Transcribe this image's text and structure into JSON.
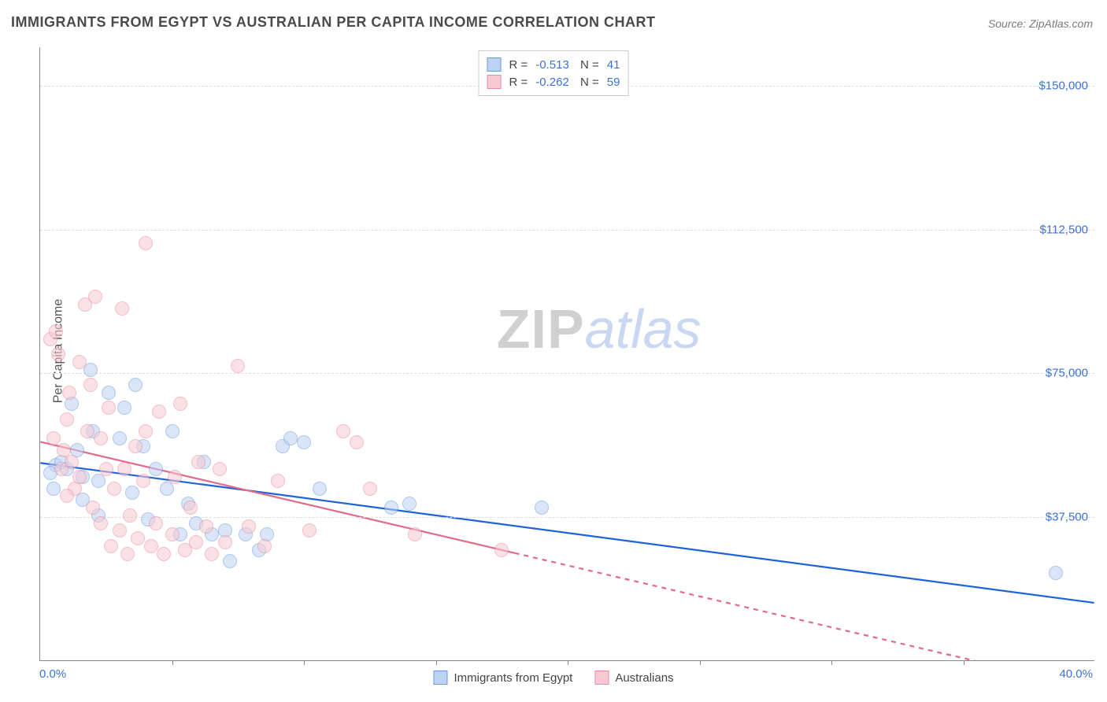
{
  "title": "IMMIGRANTS FROM EGYPT VS AUSTRALIAN PER CAPITA INCOME CORRELATION CHART",
  "source_label": "Source: ZipAtlas.com",
  "ylabel": "Per Capita Income",
  "watermark": {
    "part1": "ZIP",
    "part2": "atlas"
  },
  "chart": {
    "type": "scatter",
    "xlim": [
      0,
      40
    ],
    "ylim": [
      0,
      160000
    ],
    "x_tick_left": "0.0%",
    "x_tick_right": "40.0%",
    "x_minor_ticks": [
      5,
      10,
      15,
      20,
      25,
      30,
      35
    ],
    "y_ticks": [
      {
        "v": 37500,
        "label": "$37,500"
      },
      {
        "v": 75000,
        "label": "$75,000"
      },
      {
        "v": 112500,
        "label": "$112,500"
      },
      {
        "v": 150000,
        "label": "$150,000"
      }
    ],
    "background_color": "#ffffff",
    "grid_color": "#dddddd",
    "axis_color": "#888888",
    "value_color": "#3b72d4",
    "point_radius": 9,
    "point_opacity": 0.55,
    "line_width": 2.2,
    "series": [
      {
        "key": "egypt",
        "label": "Immigrants from Egypt",
        "color_fill": "#bcd3f2",
        "color_stroke": "#6a9ae0",
        "line_color": "#1e63d8",
        "R": "-0.513",
        "N": "41",
        "trend": {
          "start": {
            "x": 0,
            "y": 51500
          },
          "end": {
            "x": 40,
            "y": 15000
          },
          "extrapolate_from_x": 40
        },
        "points": [
          {
            "x": 0.6,
            "y": 51000
          },
          {
            "x": 0.8,
            "y": 52000
          },
          {
            "x": 1.0,
            "y": 50000
          },
          {
            "x": 1.2,
            "y": 67000
          },
          {
            "x": 1.4,
            "y": 55000
          },
          {
            "x": 1.6,
            "y": 48000
          },
          {
            "x": 1.6,
            "y": 42000
          },
          {
            "x": 1.9,
            "y": 76000
          },
          {
            "x": 2.0,
            "y": 60000
          },
          {
            "x": 2.2,
            "y": 47000
          },
          {
            "x": 2.2,
            "y": 38000
          },
          {
            "x": 2.6,
            "y": 70000
          },
          {
            "x": 3.0,
            "y": 58000
          },
          {
            "x": 3.2,
            "y": 66000
          },
          {
            "x": 3.5,
            "y": 44000
          },
          {
            "x": 3.6,
            "y": 72000
          },
          {
            "x": 3.9,
            "y": 56000
          },
          {
            "x": 4.1,
            "y": 37000
          },
          {
            "x": 4.4,
            "y": 50000
          },
          {
            "x": 4.8,
            "y": 45000
          },
          {
            "x": 5.0,
            "y": 60000
          },
          {
            "x": 5.3,
            "y": 33000
          },
          {
            "x": 5.6,
            "y": 41000
          },
          {
            "x": 5.9,
            "y": 36000
          },
          {
            "x": 6.2,
            "y": 52000
          },
          {
            "x": 6.5,
            "y": 33000
          },
          {
            "x": 7.0,
            "y": 34000
          },
          {
            "x": 7.2,
            "y": 26000
          },
          {
            "x": 7.8,
            "y": 33000
          },
          {
            "x": 8.3,
            "y": 29000
          },
          {
            "x": 8.6,
            "y": 33000
          },
          {
            "x": 9.2,
            "y": 56000
          },
          {
            "x": 9.5,
            "y": 58000
          },
          {
            "x": 10.0,
            "y": 57000
          },
          {
            "x": 10.6,
            "y": 45000
          },
          {
            "x": 13.3,
            "y": 40000
          },
          {
            "x": 14.0,
            "y": 41000
          },
          {
            "x": 19.0,
            "y": 40000
          },
          {
            "x": 38.5,
            "y": 23000
          },
          {
            "x": 0.5,
            "y": 45000
          },
          {
            "x": 0.4,
            "y": 49000
          }
        ]
      },
      {
        "key": "aus",
        "label": "Australians",
        "color_fill": "#f7c9d3",
        "color_stroke": "#e88aa0",
        "line_color": "#e36a88",
        "R": "-0.262",
        "N": "59",
        "trend": {
          "start": {
            "x": 0,
            "y": 57000
          },
          "end": {
            "x": 18,
            "y": 28000
          },
          "extrapolate_from_x": 18
        },
        "points": [
          {
            "x": 0.4,
            "y": 84000
          },
          {
            "x": 0.6,
            "y": 86000
          },
          {
            "x": 0.7,
            "y": 80000
          },
          {
            "x": 0.9,
            "y": 55000
          },
          {
            "x": 1.0,
            "y": 63000
          },
          {
            "x": 1.1,
            "y": 70000
          },
          {
            "x": 1.2,
            "y": 52000
          },
          {
            "x": 1.3,
            "y": 45000
          },
          {
            "x": 1.5,
            "y": 78000
          },
          {
            "x": 1.5,
            "y": 48000
          },
          {
            "x": 1.7,
            "y": 93000
          },
          {
            "x": 1.8,
            "y": 60000
          },
          {
            "x": 1.9,
            "y": 72000
          },
          {
            "x": 2.0,
            "y": 40000
          },
          {
            "x": 2.1,
            "y": 95000
          },
          {
            "x": 2.3,
            "y": 36000
          },
          {
            "x": 2.3,
            "y": 58000
          },
          {
            "x": 2.5,
            "y": 50000
          },
          {
            "x": 2.6,
            "y": 66000
          },
          {
            "x": 2.7,
            "y": 30000
          },
          {
            "x": 2.8,
            "y": 45000
          },
          {
            "x": 3.0,
            "y": 34000
          },
          {
            "x": 3.1,
            "y": 92000
          },
          {
            "x": 3.2,
            "y": 50000
          },
          {
            "x": 3.3,
            "y": 28000
          },
          {
            "x": 3.4,
            "y": 38000
          },
          {
            "x": 3.6,
            "y": 56000
          },
          {
            "x": 3.7,
            "y": 32000
          },
          {
            "x": 3.9,
            "y": 47000
          },
          {
            "x": 4.0,
            "y": 109000
          },
          {
            "x": 4.0,
            "y": 60000
          },
          {
            "x": 4.2,
            "y": 30000
          },
          {
            "x": 4.4,
            "y": 36000
          },
          {
            "x": 4.5,
            "y": 65000
          },
          {
            "x": 4.7,
            "y": 28000
          },
          {
            "x": 5.0,
            "y": 33000
          },
          {
            "x": 5.1,
            "y": 48000
          },
          {
            "x": 5.3,
            "y": 67000
          },
          {
            "x": 5.5,
            "y": 29000
          },
          {
            "x": 5.7,
            "y": 40000
          },
          {
            "x": 5.9,
            "y": 31000
          },
          {
            "x": 6.0,
            "y": 52000
          },
          {
            "x": 6.3,
            "y": 35000
          },
          {
            "x": 6.5,
            "y": 28000
          },
          {
            "x": 6.8,
            "y": 50000
          },
          {
            "x": 7.0,
            "y": 31000
          },
          {
            "x": 7.5,
            "y": 77000
          },
          {
            "x": 7.9,
            "y": 35000
          },
          {
            "x": 8.5,
            "y": 30000
          },
          {
            "x": 9.0,
            "y": 47000
          },
          {
            "x": 10.2,
            "y": 34000
          },
          {
            "x": 11.5,
            "y": 60000
          },
          {
            "x": 12.0,
            "y": 57000
          },
          {
            "x": 12.5,
            "y": 45000
          },
          {
            "x": 14.2,
            "y": 33000
          },
          {
            "x": 17.5,
            "y": 29000
          },
          {
            "x": 0.5,
            "y": 58000
          },
          {
            "x": 0.8,
            "y": 50000
          },
          {
            "x": 1.0,
            "y": 43000
          }
        ]
      }
    ]
  }
}
